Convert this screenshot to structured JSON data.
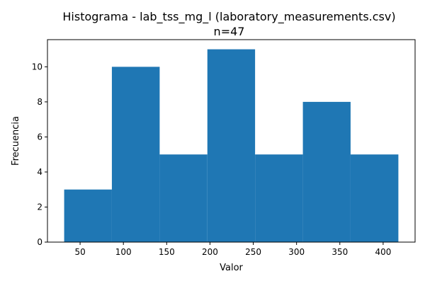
{
  "chart_data": {
    "type": "bar",
    "title": "Histograma - lab_tss_mg_l (laboratory_measurements.csv)",
    "subtitle": "n=47",
    "xlabel": "Valor",
    "ylabel": "Frecuencia",
    "bin_edges": [
      31.6,
      86.7,
      141.9,
      197.0,
      252.1,
      307.3,
      362.4,
      417.6
    ],
    "values": [
      3,
      10,
      5,
      11,
      5,
      8,
      5
    ],
    "xlim": [
      12.3,
      436.9
    ],
    "ylim": [
      0,
      11.55
    ],
    "xticks": [
      50,
      100,
      150,
      200,
      250,
      300,
      350,
      400
    ],
    "yticks": [
      0,
      2,
      4,
      6,
      8,
      10
    ],
    "bar_color": "#1f77b4",
    "grid": false
  }
}
